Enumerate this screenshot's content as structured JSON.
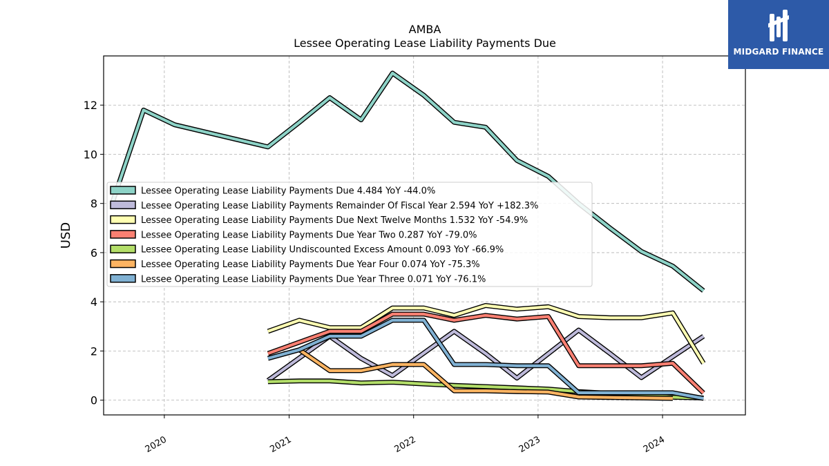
{
  "logo": {
    "text": "MIDGARD FINANCE",
    "bg_color": "#2d5aa8"
  },
  "chart_data": {
    "type": "line",
    "title": "AMBA",
    "subtitle": "Lessee Operating Lease Liability Payments Due",
    "ylabel": "USD",
    "xlabel": "",
    "ylim": [
      -0.6,
      14.0
    ],
    "xlim": [
      "2019-07-07",
      "2024-08-31"
    ],
    "yticks": [
      0,
      2,
      4,
      6,
      8,
      10,
      12
    ],
    "xticks": [
      "2020",
      "2021",
      "2022",
      "2023",
      "2024"
    ],
    "xtick_dates": [
      "2020-01-01",
      "2021-01-01",
      "2022-01-01",
      "2023-01-01",
      "2024-01-01"
    ],
    "grid": true,
    "legend_position": "center-left",
    "series": [
      {
        "name": "Lessee Operating Lease Liability Payments Due  4.484 YoY -44.0%",
        "color": "#8dd3c7",
        "x": [
          "2019-08-01",
          "2019-11-01",
          "2020-01-31",
          "2020-10-31",
          "2021-01-31",
          "2021-04-30",
          "2021-07-31",
          "2021-10-31",
          "2022-01-31",
          "2022-04-30",
          "2022-07-31",
          "2022-10-31",
          "2023-01-31",
          "2023-04-30",
          "2023-07-31",
          "2023-10-31",
          "2024-01-31",
          "2024-04-30"
        ],
        "y": [
          8.0,
          11.8,
          11.2,
          10.3,
          11.3,
          12.3,
          11.4,
          13.3,
          12.4,
          11.3,
          11.1,
          9.75,
          9.1,
          8.0,
          7.0,
          6.05,
          5.45,
          4.45
        ]
      },
      {
        "name": "Lessee Operating Lease Liability Payments Remainder Of Fiscal Year  2.594 YoY +182.3%",
        "color": "#bebada",
        "x": [
          "2020-10-31",
          "2021-04-30",
          "2021-07-31",
          "2021-10-31",
          "2022-04-30",
          "2022-07-31",
          "2022-10-31",
          "2023-04-30",
          "2023-07-31",
          "2023-10-31",
          "2024-04-30"
        ],
        "y": [
          0.8,
          2.6,
          1.7,
          1.0,
          2.8,
          1.9,
          0.9,
          2.85,
          1.9,
          0.92,
          2.6
        ]
      },
      {
        "name": "Lessee Operating Lease Liability Payments Due Next Twelve Months  1.532 YoY -54.9%",
        "color": "#ffffb3",
        "x": [
          "2020-10-31",
          "2021-01-31",
          "2021-04-30",
          "2021-07-31",
          "2021-10-31",
          "2022-01-31",
          "2022-04-30",
          "2022-07-31",
          "2022-10-31",
          "2023-01-31",
          "2023-04-30",
          "2023-07-31",
          "2023-10-31",
          "2024-01-31",
          "2024-04-30"
        ],
        "y": [
          2.8,
          3.25,
          2.95,
          2.95,
          3.75,
          3.75,
          3.45,
          3.85,
          3.7,
          3.8,
          3.4,
          3.35,
          3.35,
          3.55,
          1.5
        ]
      },
      {
        "name": "Lessee Operating Lease Liability Payments Due Year Two  0.287 YoY -79.0%",
        "color": "#fb8072",
        "x": [
          "2020-10-31",
          "2021-04-30",
          "2021-07-31",
          "2021-10-31",
          "2022-01-31",
          "2022-04-30",
          "2022-07-31",
          "2022-10-31",
          "2023-01-31",
          "2023-04-30",
          "2023-07-31",
          "2023-10-31",
          "2024-01-31",
          "2024-04-30"
        ],
        "y": [
          1.9,
          2.8,
          2.8,
          3.5,
          3.5,
          3.25,
          3.45,
          3.3,
          3.4,
          1.4,
          1.4,
          1.4,
          1.5,
          0.29
        ]
      },
      {
        "name": "Lessee Operating Lease Liability Undiscounted Excess Amount  0.093 YoY -66.9%",
        "color": "#b3de69",
        "x": [
          "2020-10-31",
          "2021-01-31",
          "2021-04-30",
          "2021-07-31",
          "2021-10-31",
          "2022-01-31",
          "2022-04-30",
          "2022-07-31",
          "2022-10-31",
          "2023-01-31",
          "2023-04-30",
          "2023-07-31",
          "2023-10-31",
          "2024-01-31",
          "2024-04-30"
        ],
        "y": [
          0.75,
          0.78,
          0.78,
          0.7,
          0.73,
          0.66,
          0.6,
          0.55,
          0.5,
          0.45,
          0.35,
          0.28,
          0.22,
          0.12,
          0.09
        ]
      },
      {
        "name": "Lessee Operating Lease Liability Payments Due Year Four  0.074 YoY -75.3%",
        "color": "#fdb462",
        "x": [
          "2021-01-31",
          "2021-04-30",
          "2021-07-31",
          "2021-10-31",
          "2022-01-31",
          "2022-04-30",
          "2022-07-31",
          "2022-10-31",
          "2023-01-31",
          "2023-04-30",
          "2023-07-31",
          "2023-10-31",
          "2024-01-31"
        ],
        "y": [
          2.05,
          1.2,
          1.2,
          1.45,
          1.45,
          0.38,
          0.38,
          0.35,
          0.33,
          0.13,
          0.11,
          0.09,
          0.07
        ]
      },
      {
        "name": "Lessee Operating Lease Liability Payments Due Year Three  0.071 YoY -76.1%",
        "color": "#80b1d3",
        "x": [
          "2020-10-31",
          "2021-01-31",
          "2021-04-30",
          "2021-07-31",
          "2021-10-31",
          "2022-01-31",
          "2022-04-30",
          "2022-07-31",
          "2022-10-31",
          "2023-01-31",
          "2023-04-30",
          "2023-07-31",
          "2023-10-31",
          "2024-01-31",
          "2024-04-30"
        ],
        "y": [
          1.7,
          2.05,
          2.6,
          2.6,
          3.25,
          3.25,
          1.45,
          1.45,
          1.4,
          1.4,
          0.3,
          0.3,
          0.3,
          0.3,
          0.07
        ]
      }
    ]
  }
}
